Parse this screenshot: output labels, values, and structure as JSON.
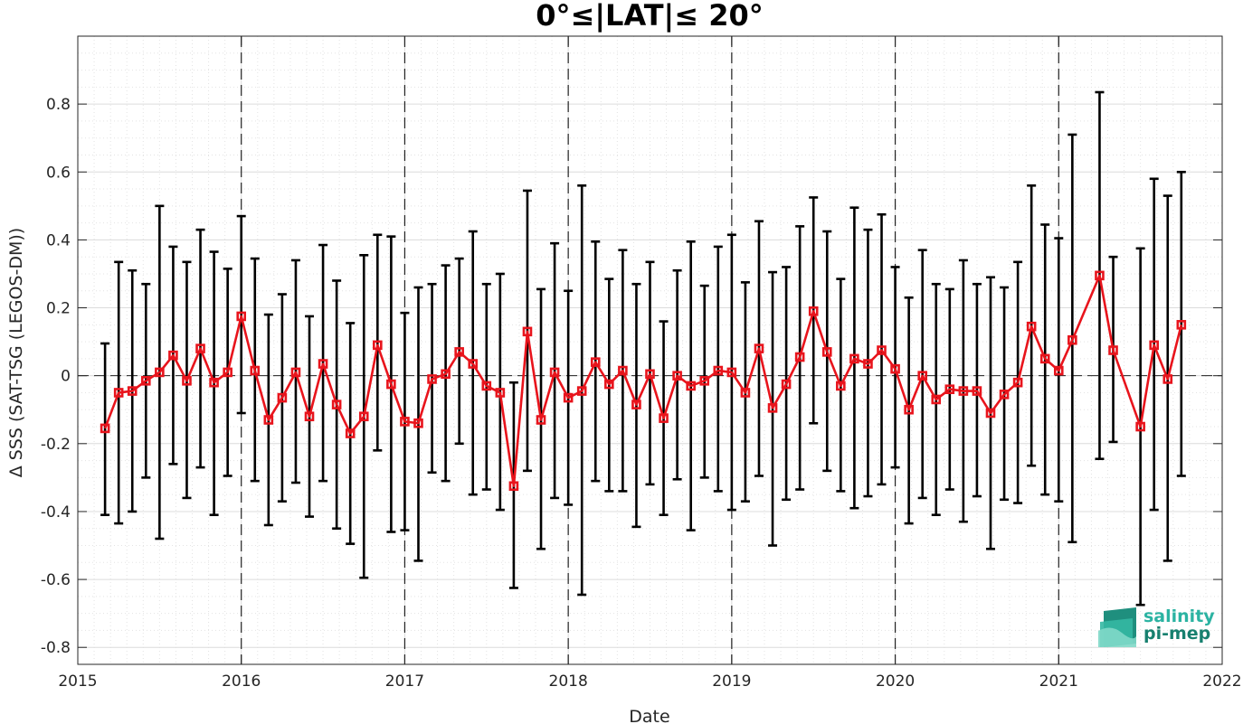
{
  "chart_data": {
    "type": "line",
    "title": "0°≤|LAT|≤ 20°",
    "xlabel": "Date",
    "ylabel": "Δ SSS (SAT-TSG (LEGOS-DM))",
    "xlim": [
      2015,
      2022
    ],
    "ylim": [
      -0.85,
      1.0
    ],
    "x_ticks": [
      2015,
      2016,
      2017,
      2018,
      2019,
      2020,
      2021,
      2022
    ],
    "y_ticks": [
      -0.8,
      -0.6,
      -0.4,
      -0.2,
      0,
      0.2,
      0.4,
      0.6,
      0.8
    ],
    "y_tick_labels": [
      "-0.8",
      "-0.6",
      "-0.4",
      "-0.2",
      "0",
      "0.2",
      "0.4",
      "0.6",
      "0.8"
    ],
    "grid": true,
    "minor_grid": true,
    "zero_line": true,
    "year_separators": [
      2016,
      2017,
      2018,
      2019,
      2020,
      2021
    ],
    "series": [
      {
        "color": "#e8141c",
        "marker": "square",
        "errorbar_color": "#000000",
        "points": [
          {
            "x": "2015-03",
            "mean": -0.155,
            "low": -0.41,
            "high": 0.095
          },
          {
            "x": "2015-04",
            "mean": -0.05,
            "low": -0.435,
            "high": 0.335
          },
          {
            "x": "2015-05",
            "mean": -0.045,
            "low": -0.4,
            "high": 0.31
          },
          {
            "x": "2015-06",
            "mean": -0.015,
            "low": -0.3,
            "high": 0.27
          },
          {
            "x": "2015-07",
            "mean": 0.01,
            "low": -0.48,
            "high": 0.5
          },
          {
            "x": "2015-08",
            "mean": 0.06,
            "low": -0.26,
            "high": 0.38
          },
          {
            "x": "2015-09",
            "mean": -0.015,
            "low": -0.36,
            "high": 0.335
          },
          {
            "x": "2015-10",
            "mean": 0.08,
            "low": -0.27,
            "high": 0.43
          },
          {
            "x": "2015-11",
            "mean": -0.02,
            "low": -0.41,
            "high": 0.365
          },
          {
            "x": "2015-12",
            "mean": 0.01,
            "low": -0.295,
            "high": 0.315
          },
          {
            "x": "2016-01",
            "mean": 0.175,
            "low": -0.11,
            "high": 0.47
          },
          {
            "x": "2016-02",
            "mean": 0.015,
            "low": -0.31,
            "high": 0.345
          },
          {
            "x": "2016-03",
            "mean": -0.13,
            "low": -0.44,
            "high": 0.18
          },
          {
            "x": "2016-04",
            "mean": -0.065,
            "low": -0.37,
            "high": 0.24
          },
          {
            "x": "2016-05",
            "mean": 0.01,
            "low": -0.315,
            "high": 0.34
          },
          {
            "x": "2016-06",
            "mean": -0.12,
            "low": -0.415,
            "high": 0.175
          },
          {
            "x": "2016-07",
            "mean": 0.035,
            "low": -0.31,
            "high": 0.385
          },
          {
            "x": "2016-08",
            "mean": -0.085,
            "low": -0.45,
            "high": 0.28
          },
          {
            "x": "2016-09",
            "mean": -0.17,
            "low": -0.495,
            "high": 0.155
          },
          {
            "x": "2016-10",
            "mean": -0.12,
            "low": -0.595,
            "high": 0.355
          },
          {
            "x": "2016-11",
            "mean": 0.09,
            "low": -0.22,
            "high": 0.415
          },
          {
            "x": "2016-12",
            "mean": -0.025,
            "low": -0.46,
            "high": 0.41
          },
          {
            "x": "2017-01",
            "mean": -0.135,
            "low": -0.455,
            "high": 0.185
          },
          {
            "x": "2017-02",
            "mean": -0.14,
            "low": -0.545,
            "high": 0.26
          },
          {
            "x": "2017-03",
            "mean": -0.01,
            "low": -0.285,
            "high": 0.27
          },
          {
            "x": "2017-04",
            "mean": 0.005,
            "low": -0.31,
            "high": 0.325
          },
          {
            "x": "2017-05",
            "mean": 0.07,
            "low": -0.2,
            "high": 0.345
          },
          {
            "x": "2017-06",
            "mean": 0.035,
            "low": -0.35,
            "high": 0.425
          },
          {
            "x": "2017-07",
            "mean": -0.03,
            "low": -0.335,
            "high": 0.27
          },
          {
            "x": "2017-08",
            "mean": -0.05,
            "low": -0.395,
            "high": 0.3
          },
          {
            "x": "2017-09",
            "mean": -0.325,
            "low": -0.625,
            "high": -0.02
          },
          {
            "x": "2017-10",
            "mean": 0.13,
            "low": -0.28,
            "high": 0.545
          },
          {
            "x": "2017-11",
            "mean": -0.13,
            "low": -0.51,
            "high": 0.255
          },
          {
            "x": "2017-12",
            "mean": 0.01,
            "low": -0.36,
            "high": 0.39
          },
          {
            "x": "2018-01",
            "mean": -0.065,
            "low": -0.38,
            "high": 0.25
          },
          {
            "x": "2018-02",
            "mean": -0.045,
            "low": -0.645,
            "high": 0.56
          },
          {
            "x": "2018-03",
            "mean": 0.04,
            "low": -0.31,
            "high": 0.395
          },
          {
            "x": "2018-04",
            "mean": -0.025,
            "low": -0.34,
            "high": 0.285
          },
          {
            "x": "2018-05",
            "mean": 0.015,
            "low": -0.34,
            "high": 0.37
          },
          {
            "x": "2018-06",
            "mean": -0.085,
            "low": -0.445,
            "high": 0.27
          },
          {
            "x": "2018-07",
            "mean": 0.005,
            "low": -0.32,
            "high": 0.335
          },
          {
            "x": "2018-08",
            "mean": -0.125,
            "low": -0.41,
            "high": 0.16
          },
          {
            "x": "2018-09",
            "mean": 0.0,
            "low": -0.305,
            "high": 0.31
          },
          {
            "x": "2018-10",
            "mean": -0.03,
            "low": -0.455,
            "high": 0.395
          },
          {
            "x": "2018-11",
            "mean": -0.015,
            "low": -0.3,
            "high": 0.265
          },
          {
            "x": "2018-12",
            "mean": 0.015,
            "low": -0.34,
            "high": 0.38
          },
          {
            "x": "2019-01",
            "mean": 0.01,
            "low": -0.395,
            "high": 0.415
          },
          {
            "x": "2019-02",
            "mean": -0.05,
            "low": -0.37,
            "high": 0.275
          },
          {
            "x": "2019-03",
            "mean": 0.08,
            "low": -0.295,
            "high": 0.455
          },
          {
            "x": "2019-04",
            "mean": -0.095,
            "low": -0.5,
            "high": 0.305
          },
          {
            "x": "2019-05",
            "mean": -0.025,
            "low": -0.365,
            "high": 0.32
          },
          {
            "x": "2019-06",
            "mean": 0.055,
            "low": -0.335,
            "high": 0.44
          },
          {
            "x": "2019-07",
            "mean": 0.19,
            "low": -0.14,
            "high": 0.525
          },
          {
            "x": "2019-08",
            "mean": 0.07,
            "low": -0.28,
            "high": 0.425
          },
          {
            "x": "2019-09",
            "mean": -0.03,
            "low": -0.34,
            "high": 0.285
          },
          {
            "x": "2019-10",
            "mean": 0.05,
            "low": -0.39,
            "high": 0.495
          },
          {
            "x": "2019-11",
            "mean": 0.035,
            "low": -0.355,
            "high": 0.43
          },
          {
            "x": "2019-12",
            "mean": 0.075,
            "low": -0.32,
            "high": 0.475
          },
          {
            "x": "2020-01",
            "mean": 0.02,
            "low": -0.27,
            "high": 0.32
          },
          {
            "x": "2020-02",
            "mean": -0.1,
            "low": -0.435,
            "high": 0.23
          },
          {
            "x": "2020-03",
            "mean": 0.0,
            "low": -0.36,
            "high": 0.37
          },
          {
            "x": "2020-04",
            "mean": -0.07,
            "low": -0.41,
            "high": 0.27
          },
          {
            "x": "2020-05",
            "mean": -0.04,
            "low": -0.335,
            "high": 0.255
          },
          {
            "x": "2020-06",
            "mean": -0.045,
            "low": -0.43,
            "high": 0.34
          },
          {
            "x": "2020-07",
            "mean": -0.045,
            "low": -0.355,
            "high": 0.27
          },
          {
            "x": "2020-08",
            "mean": -0.11,
            "low": -0.51,
            "high": 0.29
          },
          {
            "x": "2020-09",
            "mean": -0.055,
            "low": -0.365,
            "high": 0.26
          },
          {
            "x": "2020-10",
            "mean": -0.02,
            "low": -0.375,
            "high": 0.335
          },
          {
            "x": "2020-11",
            "mean": 0.145,
            "low": -0.265,
            "high": 0.56
          },
          {
            "x": "2020-12",
            "mean": 0.05,
            "low": -0.35,
            "high": 0.445
          },
          {
            "x": "2021-01",
            "mean": 0.015,
            "low": -0.37,
            "high": 0.405
          },
          {
            "x": "2021-02",
            "mean": 0.105,
            "low": -0.49,
            "high": 0.71
          },
          {
            "x": "2021-04",
            "mean": 0.295,
            "low": -0.245,
            "high": 0.835
          },
          {
            "x": "2021-05",
            "mean": 0.075,
            "low": -0.195,
            "high": 0.35
          },
          {
            "x": "2021-07",
            "mean": -0.15,
            "low": -0.675,
            "high": 0.375
          },
          {
            "x": "2021-08",
            "mean": 0.09,
            "low": -0.395,
            "high": 0.58
          },
          {
            "x": "2021-09",
            "mean": -0.01,
            "low": -0.545,
            "high": 0.53
          },
          {
            "x": "2021-10",
            "mean": 0.15,
            "low": -0.295,
            "high": 0.6
          }
        ]
      }
    ]
  },
  "logo": {
    "line1": "salinity",
    "line2": "pi-mep",
    "color1": "#2bb3a2",
    "color2": "#17806f"
  }
}
